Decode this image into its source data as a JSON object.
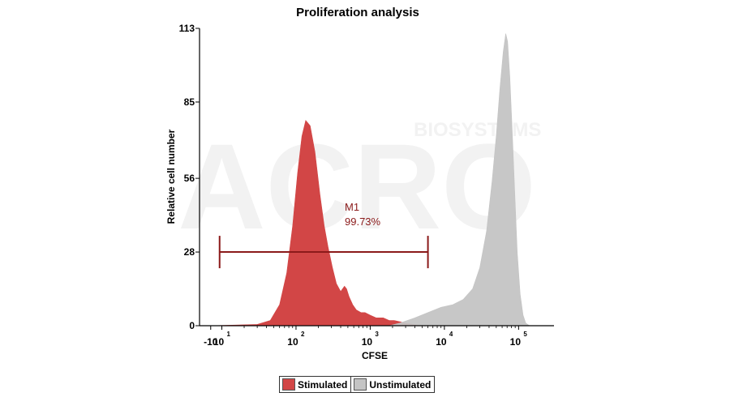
{
  "chart_data": {
    "type": "area",
    "title": "Proliferation analysis",
    "xlabel": "CFSE",
    "ylabel": "Relative cell number",
    "x_scale": "biexponential",
    "xlim": [
      -20,
      300000
    ],
    "ylim": [
      0,
      113
    ],
    "y_ticks": [
      0,
      28,
      56,
      85,
      113
    ],
    "x_ticks": [
      {
        "base": "-10",
        "exp": "",
        "value": -10
      },
      {
        "base": "10",
        "exp": "1",
        "value": 10
      },
      {
        "base": "10",
        "exp": "2",
        "value": 100
      },
      {
        "base": "10",
        "exp": "3",
        "value": 1000
      },
      {
        "base": "10",
        "exp": "4",
        "value": 10000
      },
      {
        "base": "10",
        "exp": "5",
        "value": 100000
      }
    ],
    "series": [
      {
        "name": "Stimulated",
        "color": "#d24646",
        "points": [
          [
            -10,
            0
          ],
          [
            30,
            0.5
          ],
          [
            45,
            2
          ],
          [
            60,
            8
          ],
          [
            75,
            20
          ],
          [
            90,
            38
          ],
          [
            105,
            58
          ],
          [
            120,
            72
          ],
          [
            135,
            78
          ],
          [
            155,
            76
          ],
          [
            180,
            66
          ],
          [
            210,
            50
          ],
          [
            240,
            38
          ],
          [
            270,
            30
          ],
          [
            310,
            22
          ],
          [
            350,
            16
          ],
          [
            400,
            13
          ],
          [
            450,
            15
          ],
          [
            480,
            14
          ],
          [
            520,
            11
          ],
          [
            580,
            8
          ],
          [
            650,
            6
          ],
          [
            750,
            5
          ],
          [
            850,
            5
          ],
          [
            1000,
            4
          ],
          [
            1200,
            3
          ],
          [
            1500,
            3
          ],
          [
            1800,
            2
          ],
          [
            2100,
            2
          ],
          [
            2500,
            1.5
          ],
          [
            3000,
            1
          ],
          [
            4000,
            0.4
          ],
          [
            5000,
            0
          ]
        ]
      },
      {
        "name": "Unstimulated",
        "color": "#c4c4c4",
        "points": [
          [
            1800,
            0
          ],
          [
            2500,
            1
          ],
          [
            4000,
            3
          ],
          [
            6000,
            5
          ],
          [
            9000,
            7
          ],
          [
            13000,
            8
          ],
          [
            18000,
            10
          ],
          [
            24000,
            14
          ],
          [
            30000,
            22
          ],
          [
            37000,
            36
          ],
          [
            44000,
            55
          ],
          [
            50000,
            72
          ],
          [
            56000,
            90
          ],
          [
            62000,
            104
          ],
          [
            67000,
            111
          ],
          [
            71000,
            108
          ],
          [
            76000,
            95
          ],
          [
            82000,
            74
          ],
          [
            89000,
            50
          ],
          [
            96000,
            28
          ],
          [
            105000,
            12
          ],
          [
            115000,
            4
          ],
          [
            125000,
            1
          ],
          [
            140000,
            0
          ]
        ]
      }
    ],
    "gate": {
      "name": "M1",
      "percent": "99.73%",
      "color": "#8b1a1a",
      "x_start": 6,
      "x_end": 6000,
      "y": 28
    },
    "legend_position": "bottom-center",
    "grid": false
  },
  "watermark": {
    "text": "ACRO",
    "subtext": "BIOSYSTEMS"
  }
}
